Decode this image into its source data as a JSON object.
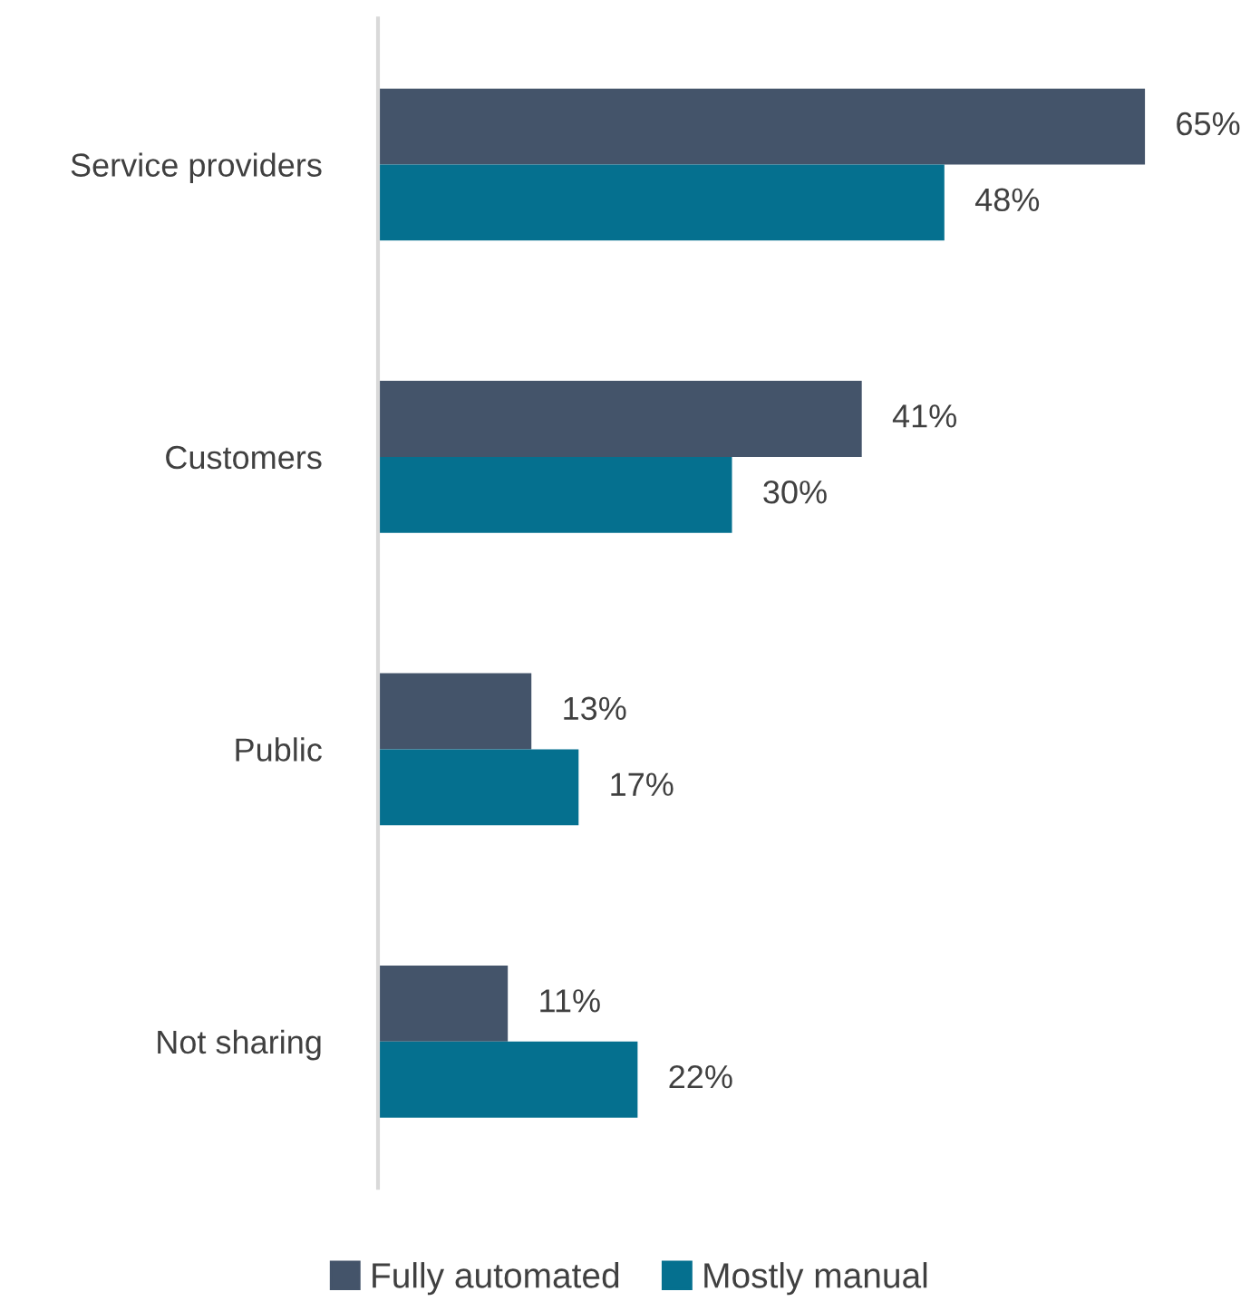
{
  "chart_data": {
    "type": "bar",
    "orientation": "horizontal",
    "relative": false,
    "categories": [
      "Service providers",
      "Customers",
      "Public",
      "Not sharing"
    ],
    "series": [
      {
        "name": "Fully automated",
        "color": "#44546a",
        "values": [
          65,
          41,
          13,
          11
        ],
        "value_labels": [
          "65%",
          "41%",
          "13%",
          "11%"
        ]
      },
      {
        "name": "Mostly manual",
        "color": "#05708f",
        "values": [
          48,
          30,
          17,
          22
        ],
        "value_labels": [
          "48%",
          "30%",
          "17%",
          "22%"
        ]
      }
    ],
    "legend": "bottom",
    "grid": false
  }
}
